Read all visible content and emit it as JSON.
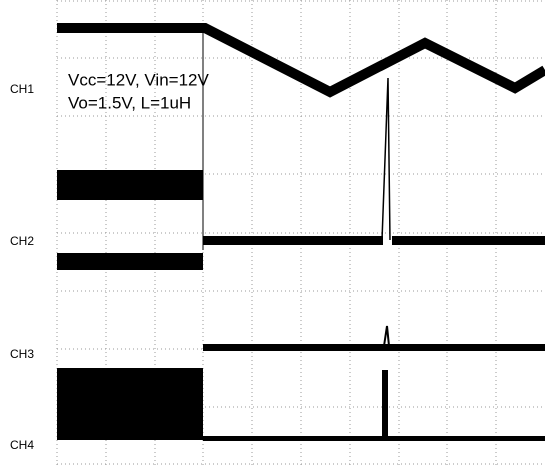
{
  "channels": [
    "CH1",
    "CH2",
    "CH3",
    "CH4"
  ],
  "annotation": [
    "Vcc=12V, Vin=12V",
    "Vo=1.5V, L=1uH"
  ]
}
